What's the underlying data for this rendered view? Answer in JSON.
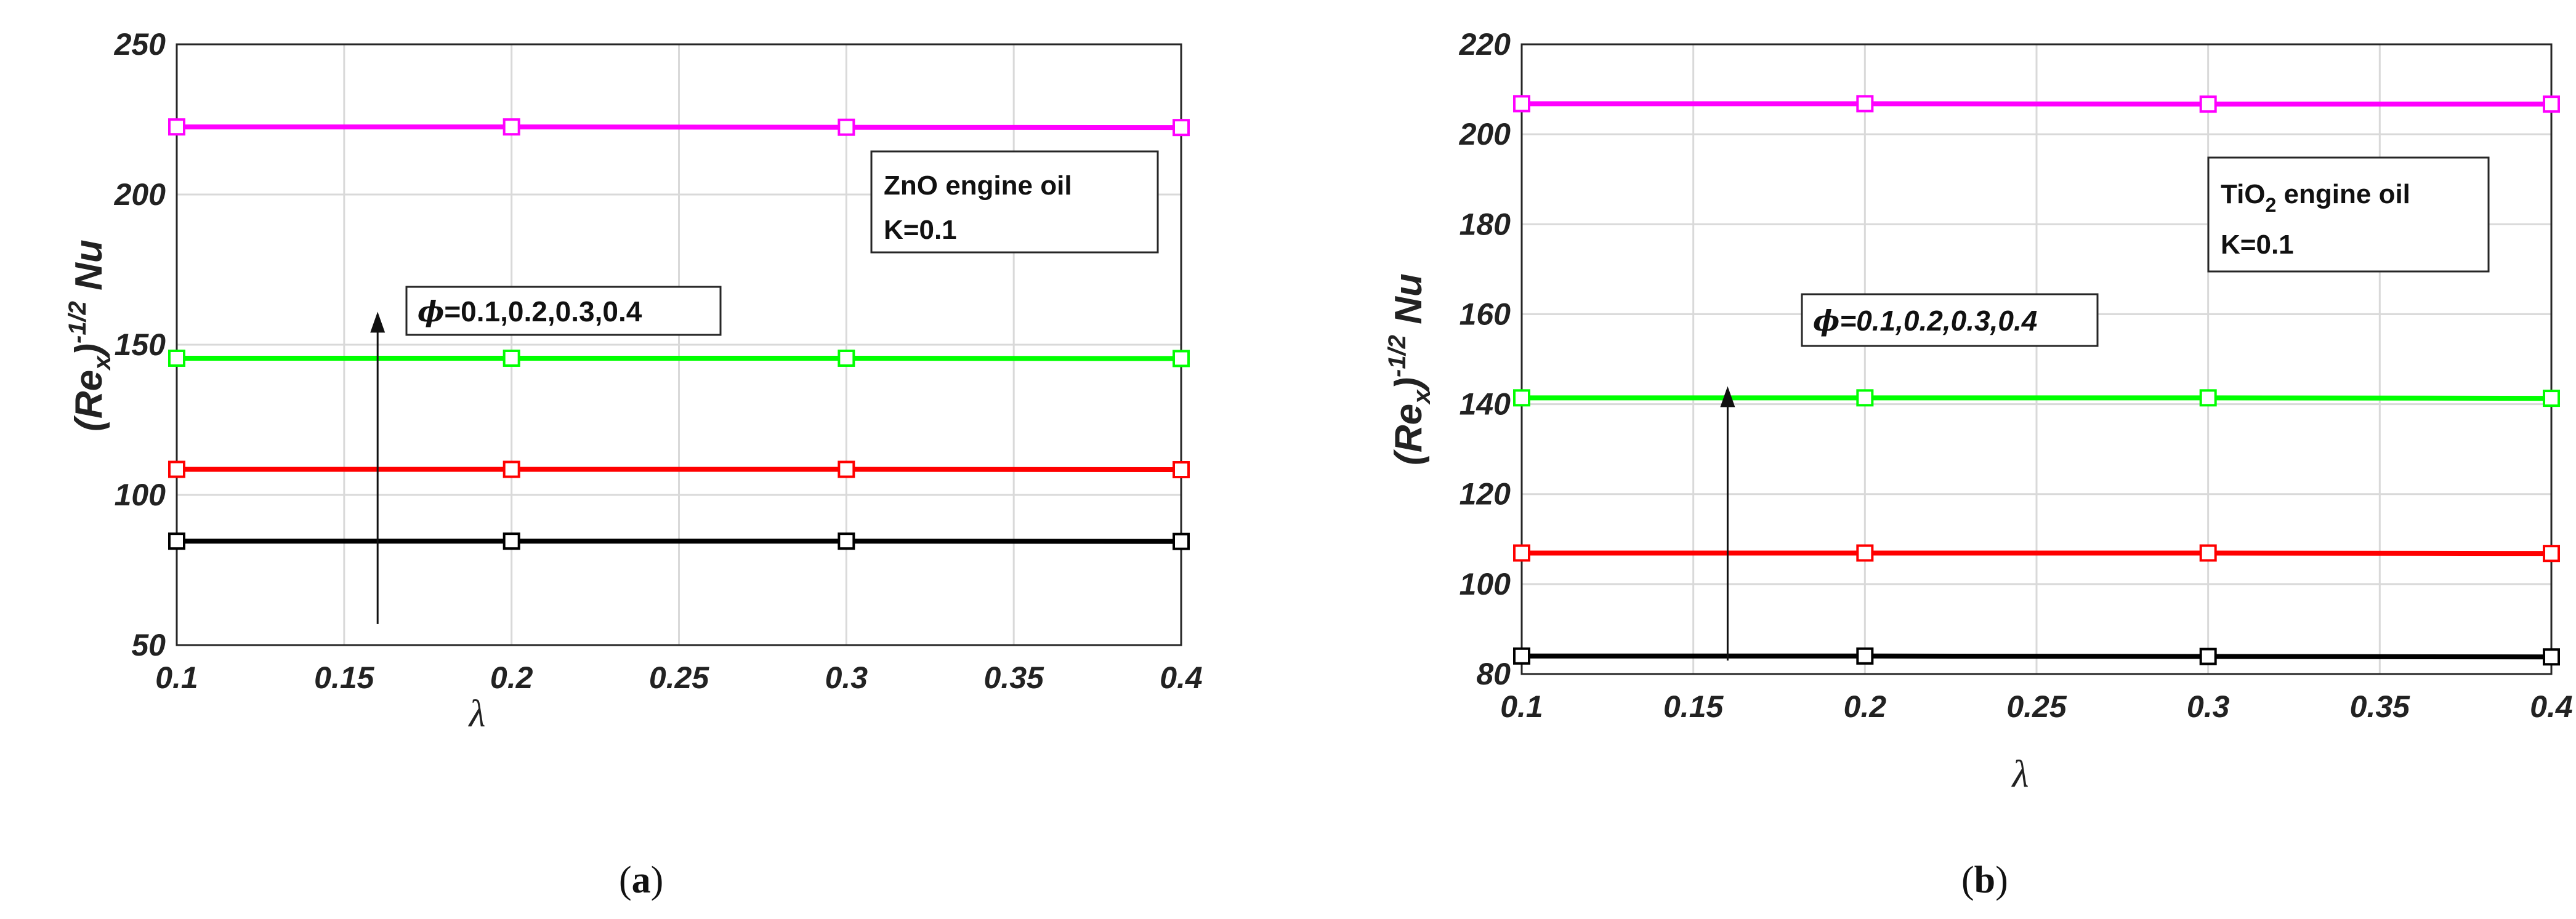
{
  "chart_data": [
    {
      "type": "line",
      "panel": "a",
      "caption": "a",
      "x": [
        0.1,
        0.2,
        0.3,
        0.4
      ],
      "xlim": [
        0.1,
        0.4
      ],
      "ylim": [
        50,
        250
      ],
      "xticks": [
        "0.1",
        "0.15",
        "0.2",
        "0.25",
        "0.3",
        "0.35",
        "0.4"
      ],
      "yticks": [
        "50",
        "100",
        "150",
        "200",
        "250"
      ],
      "xticks_values": [
        0.1,
        0.15,
        0.2,
        0.25,
        0.3,
        0.35,
        0.4
      ],
      "yticks_values": [
        50,
        100,
        150,
        200,
        250
      ],
      "xlabel": "λ",
      "ylabel": {
        "base": "(Re",
        "sub": "x",
        "close": ")",
        "sup": "-1/2",
        "tail": " Nu"
      },
      "grid": true,
      "legend_box": {
        "line1_pre": "ZnO engine oil",
        "line1_sub": "",
        "line1_post": "",
        "line2": "K=0.1",
        "placement": "top-right"
      },
      "annotation": {
        "symbol": "ϕ",
        "text": "=0.1,0.2,0.3,0.4",
        "italic": false,
        "arrow_from": 57,
        "arrow_to": 161,
        "arrow_x": 0.16
      },
      "series": [
        {
          "name": "ϕ=0.1",
          "color": "#000000",
          "values": [
            84.6,
            84.6,
            84.6,
            84.5
          ]
        },
        {
          "name": "ϕ=0.2",
          "color": "#ff0000",
          "values": [
            108.5,
            108.5,
            108.5,
            108.4
          ]
        },
        {
          "name": "ϕ=0.3",
          "color": "#00ff00",
          "values": [
            145.5,
            145.5,
            145.5,
            145.4
          ]
        },
        {
          "name": "ϕ=0.4",
          "color": "#ff00ff",
          "values": [
            222.5,
            222.5,
            222.4,
            222.3
          ]
        }
      ]
    },
    {
      "type": "line",
      "panel": "b",
      "caption": "b",
      "x": [
        0.1,
        0.2,
        0.3,
        0.4
      ],
      "xlim": [
        0.1,
        0.4
      ],
      "ylim": [
        80,
        220
      ],
      "xticks": [
        "0.1",
        "0.15",
        "0.2",
        "0.25",
        "0.3",
        "0.35",
        "0.4"
      ],
      "yticks": [
        "80",
        "100",
        "120",
        "140",
        "160",
        "180",
        "200",
        "220"
      ],
      "xticks_values": [
        0.1,
        0.15,
        0.2,
        0.25,
        0.3,
        0.35,
        0.4
      ],
      "yticks_values": [
        80,
        100,
        120,
        140,
        160,
        180,
        200,
        220
      ],
      "xlabel": "λ",
      "ylabel": {
        "base": "(Re",
        "sub": "x",
        "close": ")",
        "sup": "-1/2",
        "tail": " Nu"
      },
      "grid": true,
      "legend_box": {
        "line1_pre": "TiO",
        "line1_sub": "2",
        "line1_post": " engine oil",
        "line2": "K=0.1",
        "placement": "top-right"
      },
      "annotation": {
        "symbol": "ϕ",
        "text": "=0.1,0.2,0.3,0.4",
        "italic": true,
        "arrow_from": 83,
        "arrow_to": 144,
        "arrow_x": 0.16
      },
      "series": [
        {
          "name": "ϕ=0.1",
          "color": "#000000",
          "values": [
            84.0,
            84.0,
            83.9,
            83.8
          ]
        },
        {
          "name": "ϕ=0.2",
          "color": "#ff0000",
          "values": [
            106.9,
            106.9,
            106.9,
            106.8
          ]
        },
        {
          "name": "ϕ=0.3",
          "color": "#00ff00",
          "values": [
            141.4,
            141.4,
            141.4,
            141.3
          ]
        },
        {
          "name": "ϕ=0.4",
          "color": "#ff00ff",
          "values": [
            206.8,
            206.8,
            206.7,
            206.7
          ]
        }
      ]
    }
  ]
}
